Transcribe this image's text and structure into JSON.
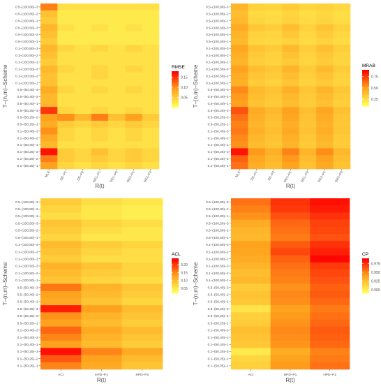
{
  "color_scale": {
    "low": "#ffff5a",
    "mid": "#ffa21d",
    "high": "#ff0000"
  },
  "row_labels": [
    "0.5–(100,80)–3",
    "0.5–(100,80)–2",
    "0.5–(100,80)–1",
    "0.5–(100,50)–3",
    "0.5–(100,50)–2",
    "0.5–(100,50)–1",
    "0.1–(100,80)–3",
    "0.1–(100,80)–2",
    "0.1–(100,80)–1",
    "0.1–(100,50)–3",
    "0.1–(100,50)–2",
    "0.1–(100,50)–1",
    "0.5–(50,40)–3",
    "0.5–(50,40)–2",
    "0.5–(50,40)–1",
    "0.5–(50,25)–3",
    "0.5–(50,25)–2",
    "0.5–(50,25)–1",
    "0.1–(50,40)–3",
    "0.1–(50,40)–2",
    "0.1–(50,40)–1",
    "0.1–(50,25)–3",
    "0.1–(50,25)–2",
    "0.1–(50,25)–1"
  ],
  "chart_data": [
    {
      "type": "heatmap",
      "xlabel": "R(t)",
      "ylabel": "T–(n,m)–Scheme",
      "legend_title": "RMSE",
      "legend_ticks": [
        "0.15",
        "0.10",
        "0.05"
      ],
      "legend_tick_values": [
        0.15,
        0.1,
        0.05
      ],
      "range": [
        0.0,
        0.18
      ],
      "columns": [
        "MLE",
        "SE–P1",
        "SE–P2",
        "GE1–P1",
        "GE1–P2",
        "GE2–P1",
        "GE2–P2"
      ],
      "values": [
        [
          0.11,
          0.03,
          0.03,
          0.03,
          0.03,
          0.03,
          0.03
        ],
        [
          0.06,
          0.02,
          0.02,
          0.02,
          0.02,
          0.02,
          0.02
        ],
        [
          0.05,
          0.02,
          0.02,
          0.02,
          0.02,
          0.02,
          0.02
        ],
        [
          0.07,
          0.03,
          0.02,
          0.03,
          0.02,
          0.03,
          0.02
        ],
        [
          0.06,
          0.02,
          0.02,
          0.02,
          0.02,
          0.02,
          0.02
        ],
        [
          0.05,
          0.02,
          0.02,
          0.02,
          0.02,
          0.02,
          0.02
        ],
        [
          0.07,
          0.04,
          0.03,
          0.04,
          0.03,
          0.04,
          0.03
        ],
        [
          0.06,
          0.03,
          0.03,
          0.03,
          0.03,
          0.03,
          0.03
        ],
        [
          0.05,
          0.03,
          0.03,
          0.03,
          0.03,
          0.03,
          0.03
        ],
        [
          0.07,
          0.04,
          0.03,
          0.04,
          0.03,
          0.04,
          0.03
        ],
        [
          0.06,
          0.03,
          0.03,
          0.04,
          0.03,
          0.03,
          0.03
        ],
        [
          0.06,
          0.03,
          0.03,
          0.03,
          0.03,
          0.03,
          0.03
        ],
        [
          0.08,
          0.04,
          0.03,
          0.04,
          0.03,
          0.04,
          0.03
        ],
        [
          0.07,
          0.03,
          0.03,
          0.03,
          0.03,
          0.03,
          0.03
        ],
        [
          0.07,
          0.03,
          0.03,
          0.03,
          0.03,
          0.03,
          0.03
        ],
        [
          0.15,
          0.04,
          0.03,
          0.04,
          0.03,
          0.04,
          0.03
        ],
        [
          0.09,
          0.1,
          0.07,
          0.11,
          0.06,
          0.09,
          0.05
        ],
        [
          0.08,
          0.05,
          0.04,
          0.05,
          0.04,
          0.05,
          0.04
        ],
        [
          0.1,
          0.04,
          0.03,
          0.04,
          0.03,
          0.04,
          0.03
        ],
        [
          0.08,
          0.04,
          0.03,
          0.04,
          0.03,
          0.04,
          0.03
        ],
        [
          0.07,
          0.03,
          0.03,
          0.03,
          0.03,
          0.03,
          0.03
        ],
        [
          0.17,
          0.05,
          0.04,
          0.06,
          0.04,
          0.05,
          0.04
        ],
        [
          0.11,
          0.05,
          0.04,
          0.05,
          0.04,
          0.05,
          0.04
        ],
        [
          0.09,
          0.04,
          0.03,
          0.04,
          0.03,
          0.04,
          0.03
        ]
      ]
    },
    {
      "type": "heatmap",
      "xlabel": "R(t)",
      "ylabel": "T–(n,m)–Scheme",
      "legend_title": "MRAB",
      "legend_ticks": [
        "0.75",
        "0.50",
        "0.25"
      ],
      "legend_tick_values": [
        0.75,
        0.5,
        0.25
      ],
      "range": [
        0.1,
        0.9
      ],
      "columns": [
        "MLE",
        "SE–P1",
        "SE–P2",
        "GE1–P1",
        "GE1–P2",
        "GE2–P1",
        "GE2–P2"
      ],
      "values": [
        [
          0.42,
          0.3,
          0.28,
          0.32,
          0.28,
          0.3,
          0.27
        ],
        [
          0.38,
          0.26,
          0.25,
          0.28,
          0.24,
          0.27,
          0.24
        ],
        [
          0.4,
          0.28,
          0.26,
          0.3,
          0.26,
          0.28,
          0.25
        ],
        [
          0.46,
          0.34,
          0.31,
          0.38,
          0.3,
          0.36,
          0.3
        ],
        [
          0.42,
          0.3,
          0.28,
          0.34,
          0.27,
          0.32,
          0.27
        ],
        [
          0.4,
          0.28,
          0.27,
          0.3,
          0.26,
          0.29,
          0.26
        ],
        [
          0.48,
          0.36,
          0.32,
          0.4,
          0.31,
          0.38,
          0.31
        ],
        [
          0.44,
          0.33,
          0.3,
          0.36,
          0.29,
          0.34,
          0.29
        ],
        [
          0.42,
          0.31,
          0.29,
          0.33,
          0.28,
          0.32,
          0.28
        ],
        [
          0.5,
          0.38,
          0.34,
          0.42,
          0.33,
          0.4,
          0.32
        ],
        [
          0.46,
          0.35,
          0.32,
          0.38,
          0.31,
          0.36,
          0.3
        ],
        [
          0.44,
          0.32,
          0.3,
          0.35,
          0.29,
          0.33,
          0.29
        ],
        [
          0.56,
          0.4,
          0.36,
          0.44,
          0.35,
          0.42,
          0.34
        ],
        [
          0.52,
          0.38,
          0.34,
          0.4,
          0.33,
          0.39,
          0.32
        ],
        [
          0.5,
          0.36,
          0.33,
          0.38,
          0.32,
          0.37,
          0.31
        ],
        [
          0.7,
          0.46,
          0.4,
          0.5,
          0.38,
          0.48,
          0.37
        ],
        [
          0.62,
          0.44,
          0.38,
          0.48,
          0.36,
          0.46,
          0.35
        ],
        [
          0.58,
          0.42,
          0.37,
          0.45,
          0.35,
          0.43,
          0.34
        ],
        [
          0.6,
          0.44,
          0.38,
          0.47,
          0.36,
          0.45,
          0.35
        ],
        [
          0.56,
          0.41,
          0.36,
          0.44,
          0.34,
          0.42,
          0.33
        ],
        [
          0.54,
          0.39,
          0.35,
          0.42,
          0.33,
          0.4,
          0.32
        ],
        [
          0.85,
          0.52,
          0.44,
          0.58,
          0.42,
          0.55,
          0.41
        ],
        [
          0.66,
          0.48,
          0.41,
          0.52,
          0.39,
          0.5,
          0.38
        ],
        [
          0.62,
          0.45,
          0.39,
          0.49,
          0.37,
          0.47,
          0.36
        ]
      ]
    },
    {
      "type": "heatmap",
      "xlabel": "R(t)",
      "ylabel": "T–(n,m)–Scheme",
      "legend_title": "ACL",
      "legend_ticks": [
        "0.20",
        "0.15",
        "0.10",
        "0.05"
      ],
      "legend_tick_values": [
        0.2,
        0.15,
        0.1,
        0.05
      ],
      "range": [
        0.02,
        0.24
      ],
      "columns": [
        "ACI",
        "HPD–P1",
        "HPD–P2"
      ],
      "values": [
        [
          0.08,
          0.06,
          0.05
        ],
        [
          0.07,
          0.05,
          0.04
        ],
        [
          0.06,
          0.05,
          0.04
        ],
        [
          0.09,
          0.07,
          0.06
        ],
        [
          0.08,
          0.06,
          0.05
        ],
        [
          0.07,
          0.05,
          0.05
        ],
        [
          0.1,
          0.08,
          0.07
        ],
        [
          0.09,
          0.07,
          0.06
        ],
        [
          0.08,
          0.06,
          0.06
        ],
        [
          0.11,
          0.09,
          0.07
        ],
        [
          0.1,
          0.08,
          0.07
        ],
        [
          0.09,
          0.07,
          0.06
        ],
        [
          0.16,
          0.11,
          0.09
        ],
        [
          0.13,
          0.1,
          0.08
        ],
        [
          0.12,
          0.09,
          0.07
        ],
        [
          0.22,
          0.13,
          0.1
        ],
        [
          0.14,
          0.11,
          0.09
        ],
        [
          0.13,
          0.1,
          0.08
        ],
        [
          0.17,
          0.12,
          0.1
        ],
        [
          0.15,
          0.11,
          0.09
        ],
        [
          0.13,
          0.1,
          0.08
        ],
        [
          0.23,
          0.15,
          0.12
        ],
        [
          0.18,
          0.13,
          0.1
        ],
        [
          0.15,
          0.12,
          0.09
        ]
      ]
    },
    {
      "type": "heatmap",
      "xlabel": "R(t)",
      "ylabel": "T–(n,m)–Scheme",
      "legend_title": "CP",
      "legend_ticks": [
        "0.975",
        "0.950",
        "0.925",
        "0.900"
      ],
      "legend_tick_values": [
        0.975,
        0.95,
        0.925,
        0.9
      ],
      "range": [
        0.89,
        0.99
      ],
      "columns": [
        "ACI",
        "HPD–P1",
        "HPD–P2"
      ],
      "values": [
        [
          0.955,
          0.975,
          0.985
        ],
        [
          0.95,
          0.972,
          0.982
        ],
        [
          0.945,
          0.965,
          0.975
        ],
        [
          0.935,
          0.958,
          0.97
        ],
        [
          0.93,
          0.955,
          0.968
        ],
        [
          0.928,
          0.952,
          0.965
        ],
        [
          0.94,
          0.962,
          0.975
        ],
        [
          0.938,
          0.968,
          0.98
        ],
        [
          0.935,
          0.96,
          0.988
        ],
        [
          0.93,
          0.955,
          0.972
        ],
        [
          0.925,
          0.952,
          0.968
        ],
        [
          0.928,
          0.95,
          0.965
        ],
        [
          0.918,
          0.945,
          0.96
        ],
        [
          0.922,
          0.948,
          0.962
        ],
        [
          0.92,
          0.946,
          0.958
        ],
        [
          0.905,
          0.94,
          0.952
        ],
        [
          0.915,
          0.942,
          0.955
        ],
        [
          0.918,
          0.945,
          0.958
        ],
        [
          0.925,
          0.948,
          0.962
        ],
        [
          0.922,
          0.946,
          0.96
        ],
        [
          0.92,
          0.944,
          0.958
        ],
        [
          0.902,
          0.935,
          0.95
        ],
        [
          0.912,
          0.94,
          0.952
        ],
        [
          0.915,
          0.942,
          0.955
        ]
      ]
    }
  ]
}
